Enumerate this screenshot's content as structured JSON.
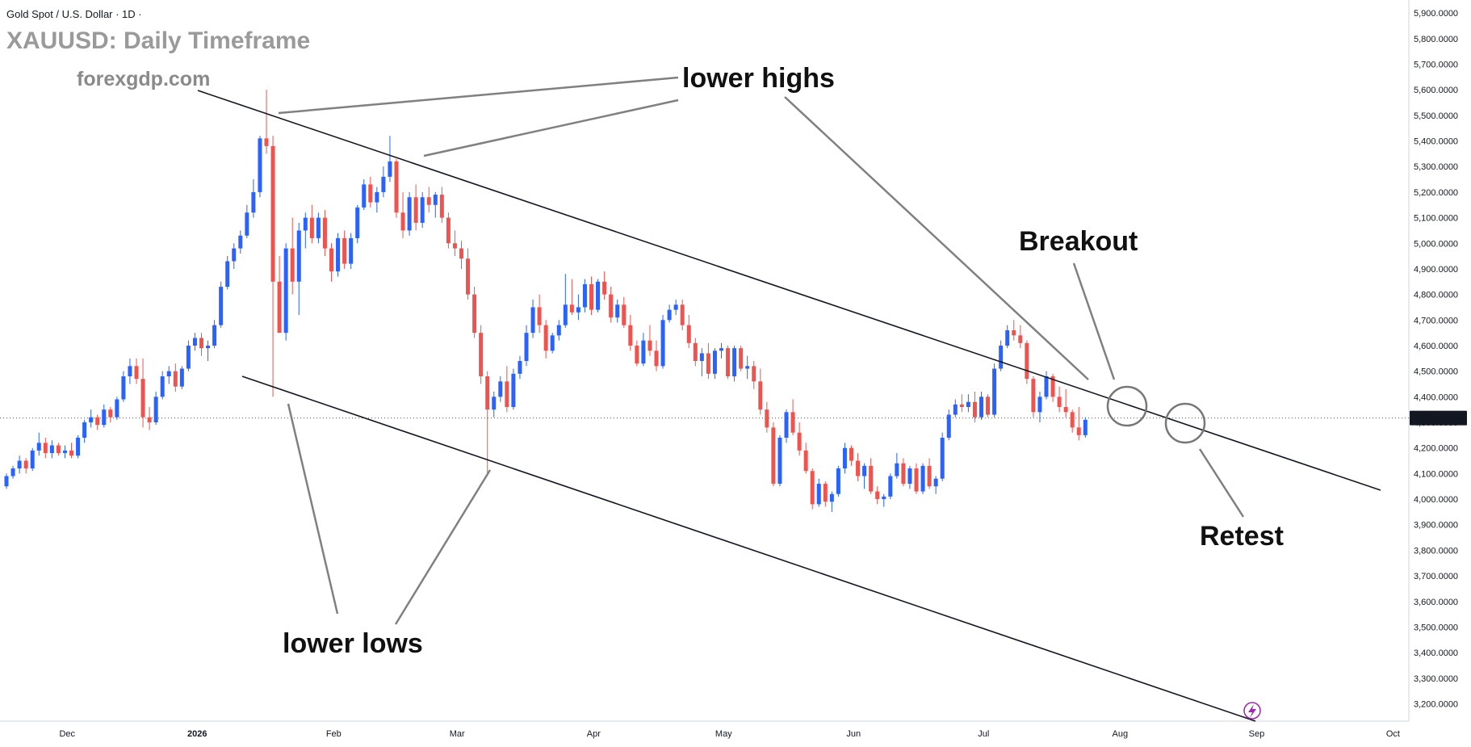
{
  "header": {
    "symbol_line": "Gold Spot / U.S. Dollar · 1D ·",
    "title": "XAUUSD: Daily Timeframe",
    "website": "forexgdp.com"
  },
  "annotations": {
    "lower_highs": "lower highs",
    "lower_lows": "lower lows",
    "breakout": "Breakout",
    "retest": "Retest"
  },
  "colors": {
    "up_candle": "#2962ff",
    "down_candle": "#ef5350",
    "trendline": "#131722",
    "pointer": "#808080",
    "price_tag": "#131722",
    "flash_icon": "#9c27b0"
  },
  "icons": {
    "flash": "lightning-bolt-icon"
  },
  "chart_data": {
    "type": "candlestick",
    "title": "XAUUSD: Daily Timeframe",
    "instrument": "Gold Spot / U.S. Dollar",
    "timeframe": "1D",
    "ylim": [
      3130,
      5930
    ],
    "y_ticks": [
      "5,900.0000",
      "5,800.0000",
      "5,700.0000",
      "5,600.0000",
      "5,500.0000",
      "5,400.0000",
      "5,300.0000",
      "5,200.0000",
      "5,100.0000",
      "5,000.0000",
      "4,900.0000",
      "4,800.0000",
      "4,700.0000",
      "4,600.0000",
      "4,500.0000",
      "4,400.0000",
      "4,300.0000",
      "4,200.0000",
      "4,100.0000",
      "4,000.0000",
      "3,900.0000",
      "3,800.0000",
      "3,700.0000",
      "3,600.0000",
      "3,500.0000",
      "3,400.0000",
      "3,300.0000",
      "3,200.0000"
    ],
    "x_ticks": [
      {
        "label": "Dec",
        "index": 5
      },
      {
        "label": "2026",
        "index": 25
      },
      {
        "label": "Feb",
        "index": 46
      },
      {
        "label": "Mar",
        "index": 65
      },
      {
        "label": "Apr",
        "index": 86
      },
      {
        "label": "May",
        "index": 106
      },
      {
        "label": "Jun",
        "index": 126
      },
      {
        "label": "Jul",
        "index": 146
      },
      {
        "label": "Aug",
        "index": 167
      },
      {
        "label": "Sep",
        "index": 188
      },
      {
        "label": "Oct",
        "index": 209
      }
    ],
    "last_price": "4,317.0600",
    "last_price_value": 4317.06,
    "candles_ohlc": [
      [
        4050,
        4100,
        4040,
        4090
      ],
      [
        4090,
        4130,
        4080,
        4120
      ],
      [
        4120,
        4170,
        4100,
        4150
      ],
      [
        4150,
        4160,
        4100,
        4120
      ],
      [
        4120,
        4200,
        4110,
        4190
      ],
      [
        4190,
        4260,
        4170,
        4220
      ],
      [
        4220,
        4240,
        4160,
        4180
      ],
      [
        4180,
        4230,
        4160,
        4210
      ],
      [
        4210,
        4220,
        4170,
        4180
      ],
      [
        4180,
        4210,
        4160,
        4190
      ],
      [
        4190,
        4220,
        4160,
        4170
      ],
      [
        4170,
        4250,
        4160,
        4240
      ],
      [
        4240,
        4310,
        4220,
        4300
      ],
      [
        4300,
        4350,
        4280,
        4320
      ],
      [
        4320,
        4330,
        4270,
        4290
      ],
      [
        4290,
        4370,
        4280,
        4350
      ],
      [
        4350,
        4360,
        4300,
        4320
      ],
      [
        4320,
        4400,
        4310,
        4390
      ],
      [
        4390,
        4500,
        4380,
        4480
      ],
      [
        4480,
        4550,
        4450,
        4520
      ],
      [
        4520,
        4550,
        4450,
        4470
      ],
      [
        4470,
        4550,
        4280,
        4320
      ],
      [
        4320,
        4360,
        4270,
        4300
      ],
      [
        4300,
        4420,
        4290,
        4400
      ],
      [
        4400,
        4500,
        4390,
        4480
      ],
      [
        4480,
        4520,
        4450,
        4500
      ],
      [
        4500,
        4530,
        4420,
        4440
      ],
      [
        4440,
        4520,
        4430,
        4510
      ],
      [
        4510,
        4620,
        4500,
        4600
      ],
      [
        4600,
        4650,
        4580,
        4630
      ],
      [
        4630,
        4650,
        4560,
        4590
      ],
      [
        4590,
        4620,
        4540,
        4600
      ],
      [
        4600,
        4700,
        4590,
        4680
      ],
      [
        4680,
        4850,
        4670,
        4830
      ],
      [
        4830,
        4950,
        4820,
        4930
      ],
      [
        4930,
        5000,
        4900,
        4980
      ],
      [
        4980,
        5050,
        4960,
        5030
      ],
      [
        5030,
        5150,
        5020,
        5120
      ],
      [
        5120,
        5250,
        5100,
        5200
      ],
      [
        5200,
        5420,
        5180,
        5410
      ],
      [
        5410,
        5600,
        5350,
        5380
      ],
      [
        5380,
        5420,
        4400,
        4850
      ],
      [
        4850,
        4950,
        4650,
        4650
      ],
      [
        4650,
        5000,
        4620,
        4980
      ],
      [
        4980,
        5100,
        4800,
        4850
      ],
      [
        4850,
        5080,
        4720,
        5050
      ],
      [
        5050,
        5120,
        4980,
        5100
      ],
      [
        5100,
        5150,
        5000,
        5020
      ],
      [
        5020,
        5120,
        5000,
        5100
      ],
      [
        5100,
        5130,
        4950,
        4980
      ],
      [
        4980,
        5000,
        4850,
        4890
      ],
      [
        4890,
        5040,
        4870,
        5020
      ],
      [
        5020,
        5050,
        4900,
        4920
      ],
      [
        4920,
        5040,
        4900,
        5020
      ],
      [
        5020,
        5150,
        5000,
        5140
      ],
      [
        5140,
        5250,
        5130,
        5230
      ],
      [
        5230,
        5260,
        5140,
        5160
      ],
      [
        5160,
        5220,
        5120,
        5200
      ],
      [
        5200,
        5300,
        5180,
        5260
      ],
      [
        5260,
        5420,
        5240,
        5320
      ],
      [
        5320,
        5330,
        5100,
        5120
      ],
      [
        5120,
        5200,
        5020,
        5050
      ],
      [
        5050,
        5200,
        5030,
        5180
      ],
      [
        5180,
        5230,
        5050,
        5080
      ],
      [
        5080,
        5200,
        5060,
        5180
      ],
      [
        5180,
        5220,
        5120,
        5150
      ],
      [
        5150,
        5200,
        5100,
        5190
      ],
      [
        5190,
        5220,
        5080,
        5100
      ],
      [
        5100,
        5120,
        4980,
        5000
      ],
      [
        5000,
        5050,
        4950,
        4980
      ],
      [
        4980,
        5010,
        4900,
        4940
      ],
      [
        4940,
        4980,
        4780,
        4800
      ],
      [
        4800,
        4830,
        4630,
        4650
      ],
      [
        4650,
        4680,
        4450,
        4480
      ],
      [
        4480,
        4500,
        4100,
        4350
      ],
      [
        4350,
        4420,
        4320,
        4400
      ],
      [
        4400,
        4480,
        4380,
        4460
      ],
      [
        4460,
        4520,
        4340,
        4360
      ],
      [
        4360,
        4510,
        4350,
        4490
      ],
      [
        4490,
        4560,
        4470,
        4540
      ],
      [
        4540,
        4680,
        4520,
        4650
      ],
      [
        4650,
        4780,
        4630,
        4750
      ],
      [
        4750,
        4800,
        4650,
        4680
      ],
      [
        4680,
        4700,
        4550,
        4580
      ],
      [
        4580,
        4650,
        4570,
        4640
      ],
      [
        4640,
        4700,
        4620,
        4680
      ],
      [
        4680,
        4880,
        4670,
        4760
      ],
      [
        4760,
        4860,
        4720,
        4730
      ],
      [
        4730,
        4800,
        4700,
        4750
      ],
      [
        4750,
        4860,
        4730,
        4840
      ],
      [
        4840,
        4870,
        4720,
        4740
      ],
      [
        4740,
        4860,
        4730,
        4850
      ],
      [
        4850,
        4890,
        4780,
        4800
      ],
      [
        4800,
        4830,
        4690,
        4710
      ],
      [
        4710,
        4780,
        4690,
        4760
      ],
      [
        4760,
        4790,
        4670,
        4680
      ],
      [
        4680,
        4720,
        4580,
        4600
      ],
      [
        4600,
        4620,
        4520,
        4530
      ],
      [
        4530,
        4650,
        4520,
        4620
      ],
      [
        4620,
        4680,
        4560,
        4580
      ],
      [
        4580,
        4620,
        4500,
        4520
      ],
      [
        4520,
        4720,
        4510,
        4700
      ],
      [
        4700,
        4760,
        4690,
        4740
      ],
      [
        4740,
        4780,
        4720,
        4760
      ],
      [
        4760,
        4780,
        4660,
        4680
      ],
      [
        4680,
        4720,
        4590,
        4610
      ],
      [
        4610,
        4630,
        4520,
        4540
      ],
      [
        4540,
        4590,
        4480,
        4570
      ],
      [
        4570,
        4610,
        4470,
        4490
      ],
      [
        4490,
        4590,
        4470,
        4580
      ],
      [
        4580,
        4610,
        4550,
        4590
      ],
      [
        4590,
        4600,
        4470,
        4480
      ],
      [
        4480,
        4600,
        4460,
        4590
      ],
      [
        4590,
        4600,
        4500,
        4510
      ],
      [
        4510,
        4560,
        4470,
        4520
      ],
      [
        4520,
        4540,
        4430,
        4460
      ],
      [
        4460,
        4510,
        4330,
        4350
      ],
      [
        4350,
        4380,
        4260,
        4280
      ],
      [
        4280,
        4300,
        4050,
        4060
      ],
      [
        4060,
        4250,
        4050,
        4240
      ],
      [
        4240,
        4350,
        4220,
        4340
      ],
      [
        4340,
        4390,
        4250,
        4260
      ],
      [
        4260,
        4300,
        4170,
        4190
      ],
      [
        4190,
        4220,
        4100,
        4110
      ],
      [
        4110,
        4120,
        3960,
        3980
      ],
      [
        3980,
        4080,
        3970,
        4060
      ],
      [
        4060,
        4070,
        3970,
        3990
      ],
      [
        3990,
        4030,
        3950,
        4020
      ],
      [
        4020,
        4130,
        4010,
        4120
      ],
      [
        4120,
        4220,
        4100,
        4200
      ],
      [
        4200,
        4210,
        4130,
        4150
      ],
      [
        4150,
        4180,
        4070,
        4090
      ],
      [
        4090,
        4140,
        4040,
        4130
      ],
      [
        4130,
        4160,
        4020,
        4030
      ],
      [
        4030,
        4050,
        3980,
        4000
      ],
      [
        4000,
        4020,
        3970,
        4010
      ],
      [
        4010,
        4100,
        4000,
        4090
      ],
      [
        4090,
        4180,
        4080,
        4140
      ],
      [
        4140,
        4160,
        4050,
        4060
      ],
      [
        4060,
        4130,
        4040,
        4120
      ],
      [
        4120,
        4140,
        4020,
        4030
      ],
      [
        4030,
        4140,
        4020,
        4130
      ],
      [
        4130,
        4160,
        4040,
        4050
      ],
      [
        4050,
        4090,
        4020,
        4080
      ],
      [
        4080,
        4260,
        4070,
        4240
      ],
      [
        4240,
        4350,
        4230,
        4330
      ],
      [
        4330,
        4390,
        4320,
        4370
      ],
      [
        4370,
        4410,
        4340,
        4360
      ],
      [
        4360,
        4410,
        4340,
        4380
      ],
      [
        4380,
        4420,
        4300,
        4320
      ],
      [
        4320,
        4420,
        4310,
        4400
      ],
      [
        4400,
        4410,
        4320,
        4330
      ],
      [
        4330,
        4530,
        4320,
        4510
      ],
      [
        4510,
        4620,
        4500,
        4600
      ],
      [
        4600,
        4680,
        4590,
        4660
      ],
      [
        4660,
        4700,
        4620,
        4640
      ],
      [
        4640,
        4680,
        4590,
        4610
      ],
      [
        4610,
        4620,
        4450,
        4470
      ],
      [
        4470,
        4480,
        4320,
        4340
      ],
      [
        4340,
        4420,
        4300,
        4400
      ],
      [
        4400,
        4500,
        4390,
        4480
      ],
      [
        4480,
        4490,
        4380,
        4400
      ],
      [
        4400,
        4440,
        4340,
        4360
      ],
      [
        4360,
        4430,
        4320,
        4340
      ],
      [
        4340,
        4350,
        4260,
        4280
      ],
      [
        4280,
        4360,
        4230,
        4250
      ],
      [
        4250,
        4320,
        4240,
        4310
      ]
    ]
  }
}
